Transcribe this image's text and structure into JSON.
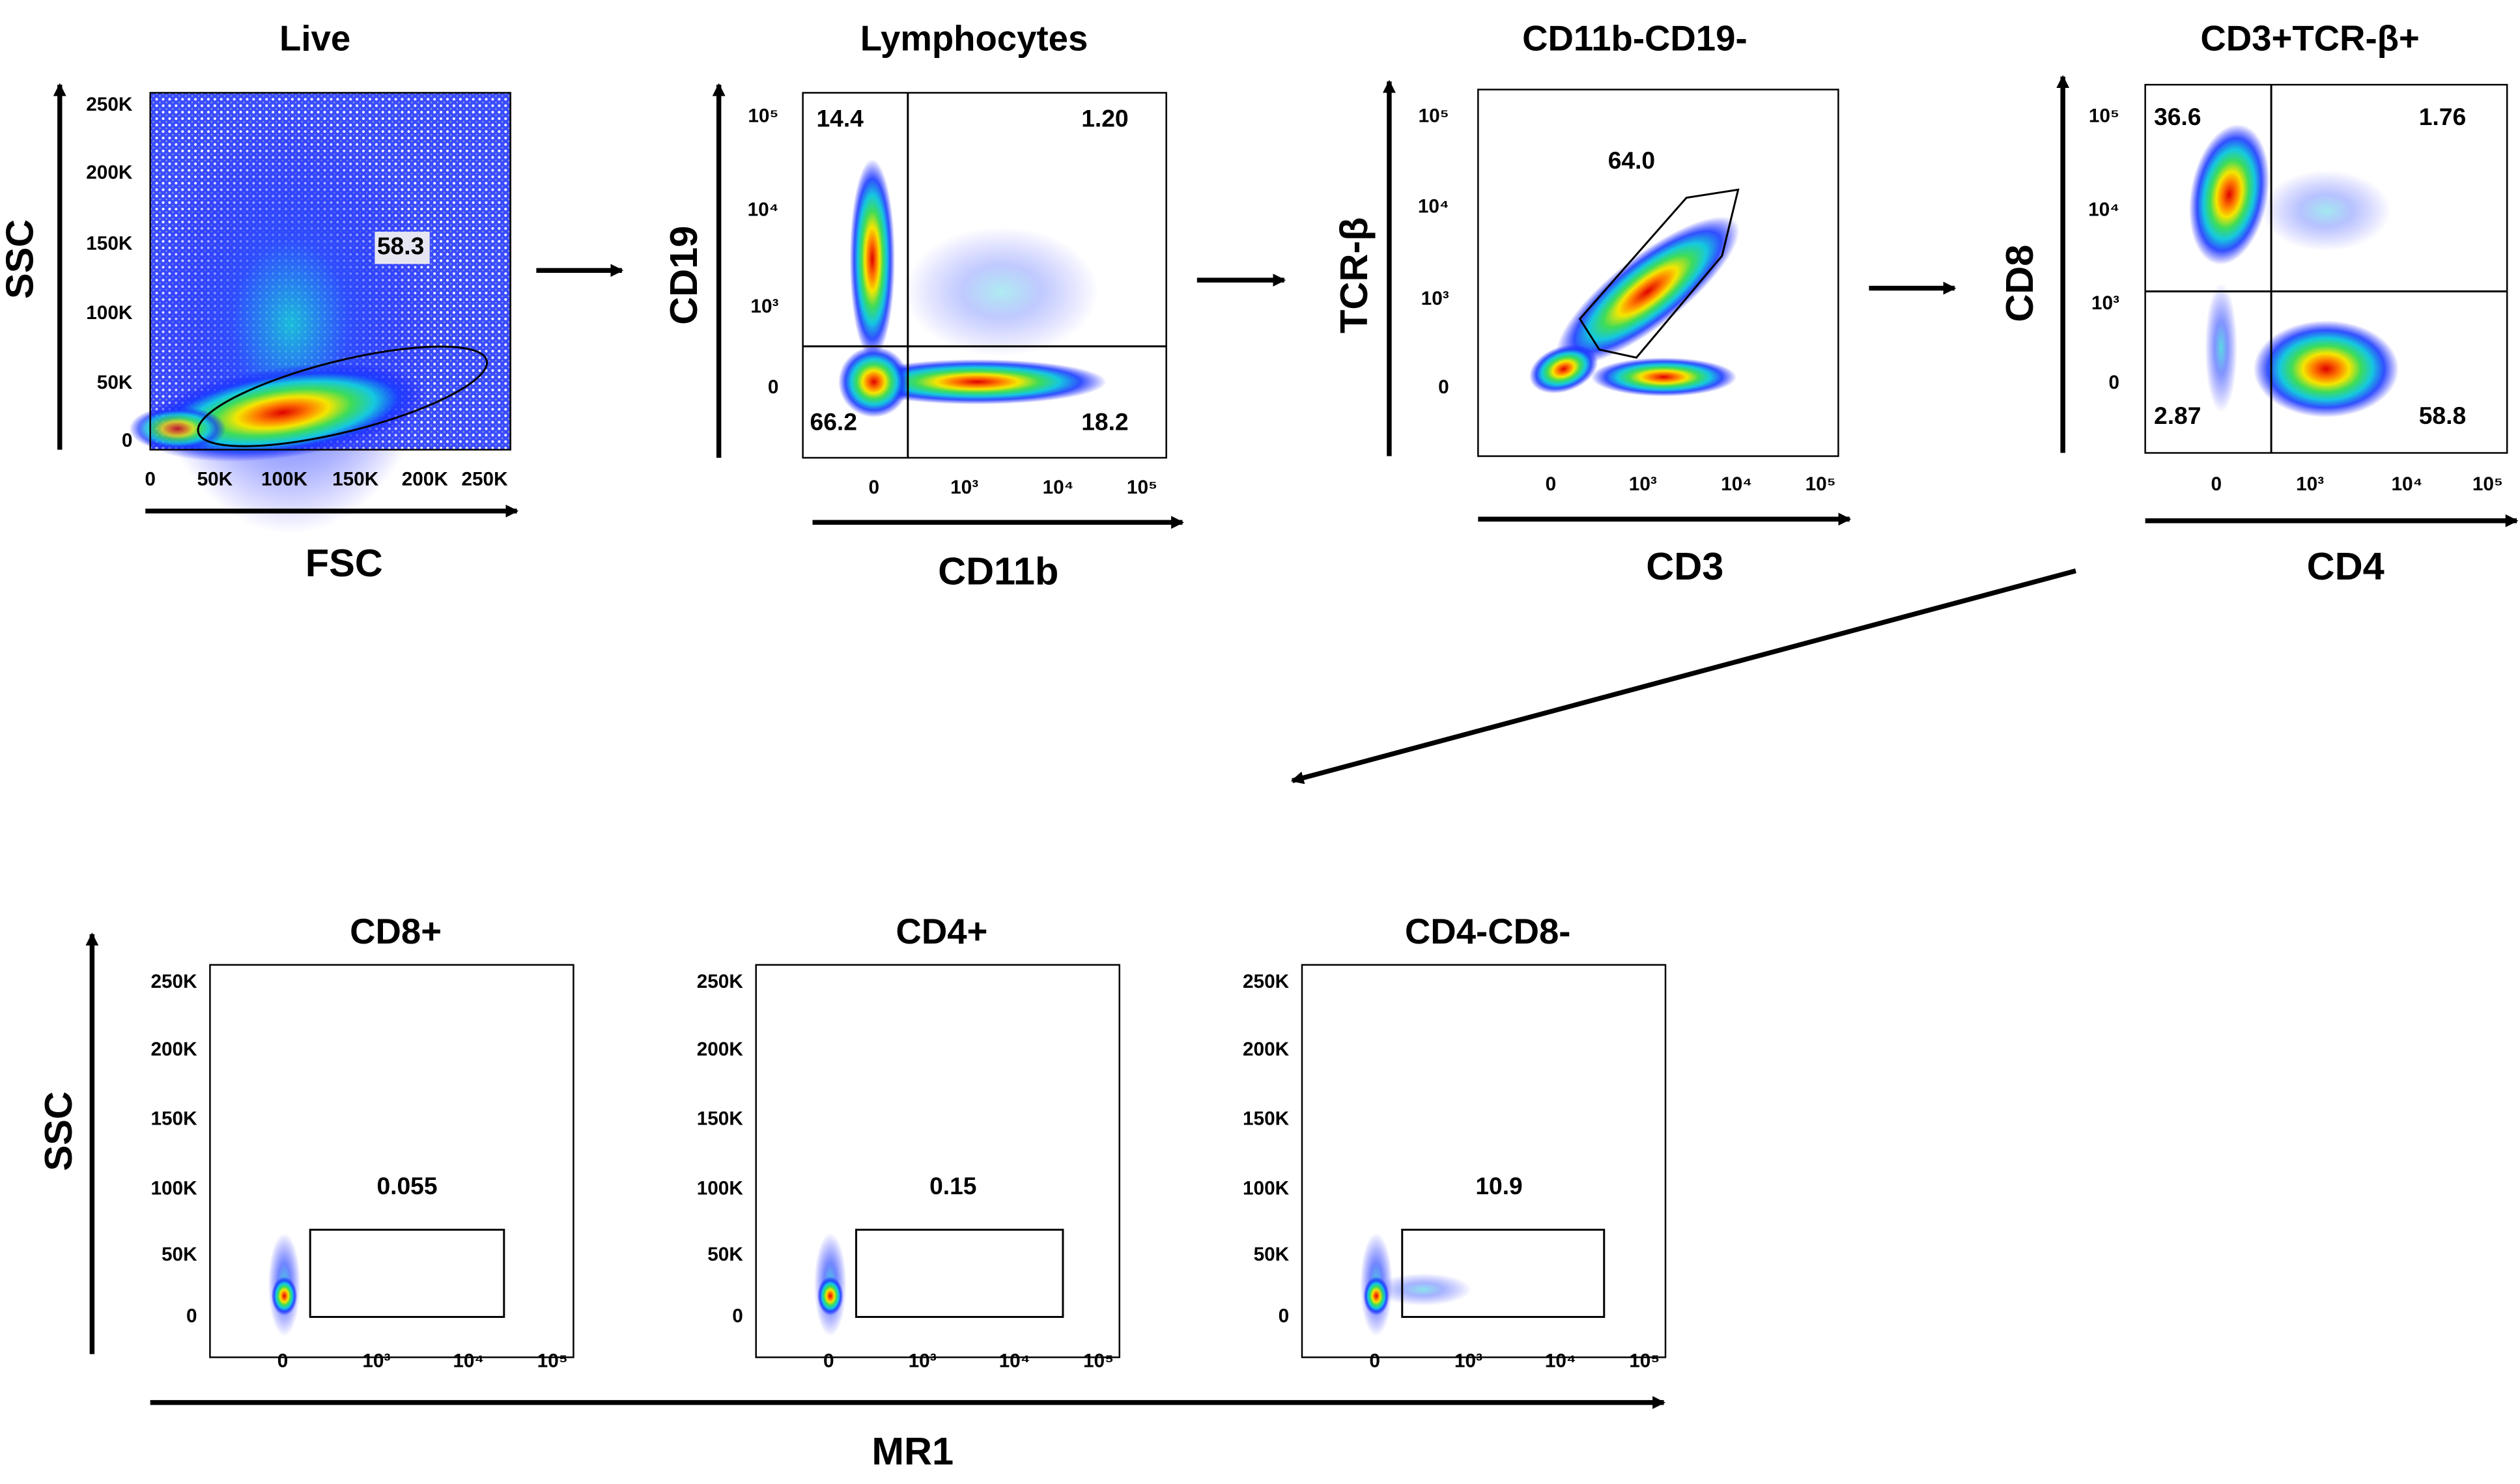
{
  "top_row": [
    {
      "title": "Live",
      "x_label": "FSC",
      "y_label": "SSC",
      "x_ticks": [
        "0",
        "50K",
        "100K",
        "150K",
        "200K",
        "250K"
      ],
      "y_ticks": [
        "250K",
        "200K",
        "150K",
        "100K",
        "50K",
        "0"
      ],
      "gates": [
        "58.3"
      ]
    },
    {
      "title": "Lymphocytes",
      "x_label": "CD11b",
      "y_label": "CD19",
      "x_ticks": [
        "0",
        "10³",
        "10⁴",
        "10⁵"
      ],
      "y_ticks": [
        "10⁵",
        "10⁴",
        "10³",
        "0"
      ],
      "gates": [
        "14.4",
        "1.20",
        "66.2",
        "18.2"
      ]
    },
    {
      "title": "CD11b-CD19-",
      "x_label": "CD3",
      "y_label": "TCR-β",
      "x_ticks": [
        "0",
        "10³",
        "10⁴",
        "10⁵"
      ],
      "y_ticks": [
        "10⁵",
        "10⁴",
        "10³",
        "0"
      ],
      "gates": [
        "64.0"
      ]
    },
    {
      "title": "CD3+TCR-β+",
      "x_label": "CD4",
      "y_label": "CD8",
      "x_ticks": [
        "0",
        "10³",
        "10⁴",
        "10⁵"
      ],
      "y_ticks": [
        "10⁵",
        "10⁴",
        "10³",
        "0"
      ],
      "gates": [
        "36.6",
        "1.76",
        "2.87",
        "58.8"
      ]
    }
  ],
  "bottom_row": {
    "x_label": "MR1",
    "y_label": "SSC",
    "panels": [
      {
        "title": "CD8+",
        "x_ticks": [
          "0",
          "10³",
          "10⁴",
          "10⁵"
        ],
        "y_ticks": [
          "250K",
          "200K",
          "150K",
          "100K",
          "50K",
          "0"
        ],
        "gate": "0.055"
      },
      {
        "title": "CD4+",
        "x_ticks": [
          "0",
          "10³",
          "10⁴",
          "10⁵"
        ],
        "y_ticks": [
          "250K",
          "200K",
          "150K",
          "100K",
          "50K",
          "0"
        ],
        "gate": "0.15"
      },
      {
        "title": "CD4-CD8-",
        "x_ticks": [
          "0",
          "10³",
          "10⁴",
          "10⁵"
        ],
        "y_ticks": [
          "250K",
          "200K",
          "150K",
          "100K",
          "50K",
          "0"
        ],
        "gate": "10.9"
      }
    ]
  }
}
